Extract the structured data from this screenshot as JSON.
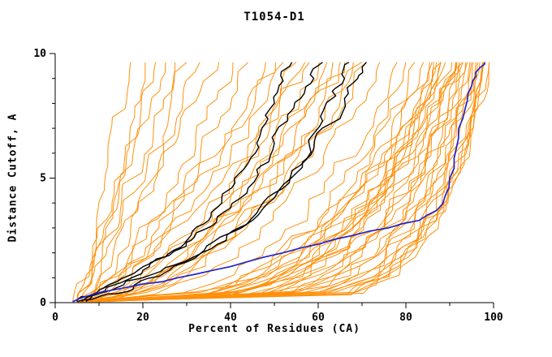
{
  "chart_data": {
    "type": "line",
    "title": "T1054-D1",
    "xlabel": "Percent of Residues (CA)",
    "ylabel": "Distance Cutoff, A",
    "xlim": [
      0,
      100
    ],
    "ylim": [
      0,
      10
    ],
    "x_major_ticks": [
      0,
      20,
      40,
      60,
      80,
      100
    ],
    "x_minor_ticks": [
      10,
      30,
      50,
      70,
      90
    ],
    "y_major_ticks": [
      0,
      5,
      10
    ],
    "y_minor_ticks": [
      1,
      2,
      3,
      4,
      6,
      7,
      8,
      9
    ],
    "y_data_max": 9.65,
    "grid": false,
    "legend": "none",
    "colors": {
      "ensemble": "#ff8c00",
      "highlight": "#000000",
      "best": "#2222cc",
      "axis": "#000000",
      "background": "#ffffff"
    },
    "series_note": "Ensemble of orange model curves parameterized as [x_percent_at_cutoff_0, x_percent_at_cutoff_max, rise_shape_exponent]; renderer evaluates x(y)=x0+(xtop-x0)*(y/ymax)^shape with small jitter to reproduce the jagged hand-read traces. Black and blue curves are explicit [x,y] polylines read off the plot.",
    "ensemble_params": [
      [
        5,
        16,
        1.0
      ],
      [
        6,
        20,
        0.95
      ],
      [
        4,
        24,
        0.9
      ],
      [
        7,
        27,
        1.0
      ],
      [
        5,
        30,
        0.85
      ],
      [
        8,
        33,
        0.9
      ],
      [
        6,
        36,
        0.95
      ],
      [
        9,
        40,
        0.85
      ],
      [
        5,
        22,
        1.05
      ],
      [
        7,
        44,
        0.8
      ],
      [
        5,
        48,
        0.7
      ],
      [
        6,
        52,
        0.65
      ],
      [
        8,
        55,
        0.6
      ],
      [
        4,
        58,
        0.7
      ],
      [
        7,
        60,
        0.55
      ],
      [
        9,
        62,
        0.6
      ],
      [
        5,
        65,
        0.5
      ],
      [
        6,
        68,
        0.55
      ],
      [
        8,
        70,
        0.5
      ],
      [
        10,
        57,
        0.65
      ],
      [
        12,
        63,
        0.6
      ],
      [
        6,
        50,
        0.75
      ],
      [
        7,
        66,
        0.45
      ],
      [
        5,
        71,
        0.5
      ],
      [
        9,
        74,
        0.45
      ],
      [
        5,
        78,
        0.35
      ],
      [
        6,
        80,
        0.3
      ],
      [
        7,
        82,
        0.33
      ],
      [
        8,
        84,
        0.28
      ],
      [
        5,
        85,
        0.3
      ],
      [
        6,
        86,
        0.25
      ],
      [
        9,
        87,
        0.3
      ],
      [
        7,
        88,
        0.26
      ],
      [
        5,
        88,
        0.22
      ],
      [
        8,
        89,
        0.28
      ],
      [
        6,
        90,
        0.24
      ],
      [
        10,
        90,
        0.3
      ],
      [
        7,
        91,
        0.22
      ],
      [
        5,
        91,
        0.27
      ],
      [
        9,
        92,
        0.2
      ],
      [
        6,
        92,
        0.25
      ],
      [
        8,
        93,
        0.22
      ],
      [
        7,
        93,
        0.18
      ],
      [
        5,
        89,
        0.33
      ],
      [
        11,
        86,
        0.35
      ],
      [
        12,
        88,
        0.3
      ],
      [
        6,
        94,
        0.2
      ],
      [
        9,
        94,
        0.24
      ],
      [
        8,
        95,
        0.18
      ],
      [
        10,
        96,
        0.2
      ],
      [
        5,
        95,
        0.15
      ],
      [
        6,
        96,
        0.13
      ],
      [
        7,
        96,
        0.14
      ],
      [
        5,
        97,
        0.12
      ],
      [
        8,
        97,
        0.13
      ],
      [
        6,
        97,
        0.15
      ],
      [
        9,
        98,
        0.12
      ],
      [
        7,
        98,
        0.14
      ],
      [
        5,
        98,
        0.13
      ],
      [
        10,
        95,
        0.16
      ]
    ],
    "black_curves": [
      [
        [
          5,
          0.05
        ],
        [
          8,
          0.3
        ],
        [
          12,
          0.7
        ],
        [
          17,
          1.1
        ],
        [
          22,
          1.6
        ],
        [
          27,
          2.1
        ],
        [
          31,
          2.7
        ],
        [
          35,
          3.3
        ],
        [
          38,
          4.0
        ],
        [
          41,
          4.8
        ],
        [
          44,
          5.6
        ],
        [
          46,
          6.4
        ],
        [
          48,
          7.2
        ],
        [
          50,
          8.0
        ],
        [
          52,
          8.9
        ],
        [
          54,
          9.65
        ]
      ],
      [
        [
          6,
          0.05
        ],
        [
          10,
          0.4
        ],
        [
          15,
          0.8
        ],
        [
          20,
          1.3
        ],
        [
          26,
          1.9
        ],
        [
          31,
          2.5
        ],
        [
          36,
          3.1
        ],
        [
          40,
          3.8
        ],
        [
          44,
          4.6
        ],
        [
          47,
          5.5
        ],
        [
          50,
          6.4
        ],
        [
          53,
          7.3
        ],
        [
          56,
          8.2
        ],
        [
          59,
          9.0
        ],
        [
          61,
          9.65
        ]
      ],
      [
        [
          5,
          0.05
        ],
        [
          9,
          0.3
        ],
        [
          14,
          0.6
        ],
        [
          20,
          1.0
        ],
        [
          27,
          1.5
        ],
        [
          34,
          2.1
        ],
        [
          40,
          2.8
        ],
        [
          46,
          3.6
        ],
        [
          50,
          4.4
        ],
        [
          54,
          5.3
        ],
        [
          58,
          6.3
        ],
        [
          61,
          7.3
        ],
        [
          64,
          8.3
        ],
        [
          66,
          9.0
        ],
        [
          67,
          9.65
        ]
      ],
      [
        [
          7,
          0.05
        ],
        [
          12,
          0.35
        ],
        [
          18,
          0.7
        ],
        [
          25,
          1.2
        ],
        [
          32,
          1.8
        ],
        [
          39,
          2.5
        ],
        [
          45,
          3.3
        ],
        [
          50,
          4.2
        ],
        [
          55,
          5.2
        ],
        [
          59,
          6.2
        ],
        [
          63,
          7.2
        ],
        [
          66,
          8.2
        ],
        [
          69,
          9.0
        ],
        [
          71,
          9.65
        ]
      ]
    ],
    "blue_curve": [
      [
        4,
        0.04
      ],
      [
        8,
        0.3
      ],
      [
        13,
        0.5
      ],
      [
        20,
        0.75
      ],
      [
        28,
        1.0
      ],
      [
        36,
        1.3
      ],
      [
        44,
        1.65
      ],
      [
        52,
        2.0
      ],
      [
        60,
        2.35
      ],
      [
        68,
        2.7
      ],
      [
        76,
        3.0
      ],
      [
        83,
        3.3
      ],
      [
        87,
        3.7
      ],
      [
        89,
        4.3
      ],
      [
        90,
        5.0
      ],
      [
        91,
        5.8
      ],
      [
        92,
        6.6
      ],
      [
        93,
        7.4
      ],
      [
        94,
        8.1
      ],
      [
        95,
        8.7
      ],
      [
        96,
        9.1
      ],
      [
        97,
        9.45
      ],
      [
        98,
        9.65
      ]
    ]
  }
}
